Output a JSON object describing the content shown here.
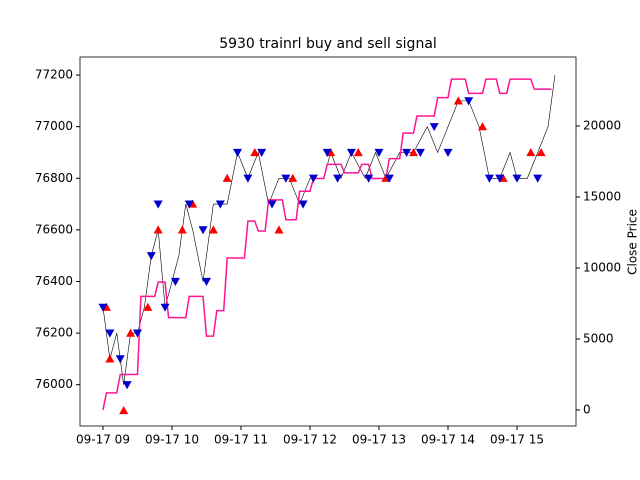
{
  "chart_data": {
    "type": "line",
    "title": "5930 trainrl buy and sell signal",
    "xlim": [
      8.667,
      15.855
    ],
    "xticks": [
      {
        "value": 9,
        "label": "09-17 09"
      },
      {
        "value": 10,
        "label": "09-17 10"
      },
      {
        "value": 11,
        "label": "09-17 11"
      },
      {
        "value": 12,
        "label": "09-17 12"
      },
      {
        "value": 13,
        "label": "09-17 13"
      },
      {
        "value": 14,
        "label": "09-17 14"
      },
      {
        "value": 15,
        "label": "09-17 15"
      }
    ],
    "ylim": [
      75840,
      77270
    ],
    "yticks": [
      76000,
      76200,
      76400,
      76600,
      76800,
      77000,
      77200
    ],
    "y2lim": [
      -1130,
      24860
    ],
    "y2ticks": [
      0,
      5000,
      10000,
      15000,
      20000
    ],
    "y2label": "Close Price",
    "series": [
      {
        "color": "#000000",
        "marker": "none",
        "width": 0.6,
        "x": [
          9.0,
          9.1,
          9.2,
          9.3,
          9.4,
          9.5,
          9.6,
          9.7,
          9.8,
          9.9,
          10.0,
          10.1,
          10.2,
          10.3,
          10.45,
          10.6,
          10.8,
          10.95,
          11.1,
          11.25,
          11.4,
          11.55,
          11.7,
          11.85,
          12.0,
          12.2,
          12.3,
          12.45,
          12.6,
          12.8,
          12.95,
          13.1,
          13.3,
          13.5,
          13.7,
          13.85,
          14.0,
          14.15,
          14.3,
          14.45,
          14.6,
          14.75,
          14.9,
          15.0,
          15.15,
          15.3,
          15.45,
          15.55
        ],
        "values": [
          76300,
          76100,
          76200,
          76000,
          76200,
          76200,
          76300,
          76500,
          76600,
          76300,
          76400,
          76500,
          76700,
          76600,
          76400,
          76700,
          76700,
          76900,
          76800,
          76900,
          76700,
          76800,
          76800,
          76700,
          76800,
          76800,
          76900,
          76800,
          76900,
          76800,
          76900,
          76800,
          76900,
          76900,
          77000,
          76900,
          77000,
          77100,
          77100,
          77000,
          76800,
          76800,
          76900,
          76800,
          76800,
          76900,
          77000,
          77200
        ]
      },
      {
        "color": "#ff1493",
        "marker": "none",
        "width": 1.5,
        "axis": "y2",
        "x": [
          9.0,
          9.05,
          9.2,
          9.25,
          9.5,
          9.55,
          9.75,
          9.8,
          9.9,
          9.95,
          10.2,
          10.25,
          10.45,
          10.5,
          10.6,
          10.65,
          10.75,
          10.8,
          11.05,
          11.1,
          11.2,
          11.25,
          11.35,
          11.4,
          11.6,
          11.65,
          11.8,
          11.85,
          12.0,
          12.05,
          12.2,
          12.25,
          12.45,
          12.5,
          12.7,
          12.75,
          12.85,
          12.9,
          13.1,
          13.15,
          13.3,
          13.35,
          13.5,
          13.55,
          13.8,
          13.85,
          14.0,
          14.05,
          14.25,
          14.3,
          14.5,
          14.55,
          14.7,
          14.75,
          14.85,
          14.9,
          15.2,
          15.25,
          15.5
        ],
        "values": [
          0,
          1200,
          1200,
          2500,
          2500,
          8000,
          8000,
          9000,
          9000,
          6500,
          6500,
          8000,
          8000,
          5200,
          5200,
          7000,
          7000,
          10700,
          10700,
          13300,
          13300,
          12600,
          12600,
          14800,
          14800,
          13400,
          13400,
          15400,
          15400,
          16300,
          16300,
          17300,
          17300,
          16700,
          16700,
          17300,
          17300,
          16300,
          16300,
          17700,
          17700,
          19500,
          19500,
          20700,
          20700,
          22000,
          22000,
          23300,
          23300,
          22300,
          22300,
          23300,
          23300,
          22300,
          22300,
          23300,
          23300,
          22600,
          22600
        ]
      },
      {
        "color": "#ff0000",
        "marker": "^",
        "x": [
          9.05,
          9.1,
          9.3,
          9.4,
          9.65,
          9.8,
          10.15,
          10.3,
          10.6,
          10.8,
          11.2,
          11.55,
          11.75,
          12.3,
          12.7,
          13.1,
          13.5,
          14.15,
          14.5,
          14.8,
          15.2,
          15.35
        ],
        "values": [
          76300,
          76100,
          75900,
          76200,
          76300,
          76600,
          76600,
          76700,
          76600,
          76800,
          76900,
          76600,
          76800,
          76900,
          76900,
          76800,
          76900,
          77100,
          77000,
          76800,
          76900,
          76900
        ]
      },
      {
        "color": "#0000cd",
        "marker": "v",
        "x": [
          9.0,
          9.1,
          9.25,
          9.35,
          9.5,
          9.7,
          9.8,
          9.9,
          10.05,
          10.25,
          10.45,
          10.5,
          10.7,
          10.95,
          11.1,
          11.3,
          11.45,
          11.65,
          11.9,
          12.05,
          12.25,
          12.4,
          12.6,
          12.85,
          13.0,
          13.15,
          13.4,
          13.6,
          13.8,
          14.0,
          14.3,
          14.6,
          14.75,
          15.0,
          15.3
        ],
        "values": [
          76300,
          76200,
          76100,
          76000,
          76200,
          76500,
          76700,
          76300,
          76400,
          76700,
          76600,
          76400,
          76700,
          76900,
          76800,
          76900,
          76700,
          76800,
          76700,
          76800,
          76900,
          76800,
          76900,
          76800,
          76900,
          76800,
          76900,
          76900,
          77000,
          76900,
          77100,
          76800,
          76800,
          76800,
          76800
        ]
      }
    ]
  }
}
